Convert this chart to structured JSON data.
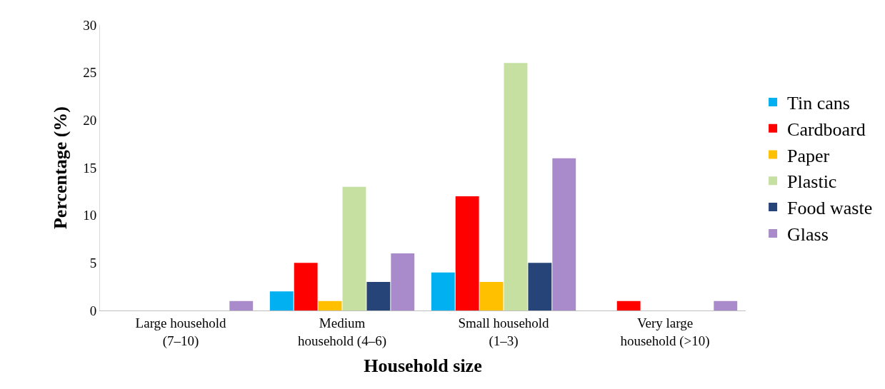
{
  "chart_data": {
    "type": "bar",
    "xlabel": "Household size",
    "ylabel": "Percentage (%)",
    "categories": [
      "Large household (7–10)",
      "Medium household (4–6)",
      "Small household (1–3)",
      "Very large household (>10)"
    ],
    "series": [
      {
        "name": "Tin cans",
        "color": "#00b0f0",
        "values": [
          0,
          2,
          4,
          0
        ]
      },
      {
        "name": "Cardboard",
        "color": "#ff0000",
        "values": [
          0,
          5,
          12,
          1
        ]
      },
      {
        "name": "Paper",
        "color": "#ffc000",
        "values": [
          0,
          1,
          3,
          0
        ]
      },
      {
        "name": "Plastic",
        "color": "#c5e0a0",
        "values": [
          0,
          13,
          26,
          0
        ]
      },
      {
        "name": "Food waste",
        "color": "#264478",
        "values": [
          0,
          3,
          5,
          0
        ]
      },
      {
        "name": "Glass",
        "color": "#a98bcb",
        "values": [
          1,
          6,
          16,
          1
        ]
      }
    ],
    "ylim": [
      0,
      30
    ],
    "yticks": [
      0,
      5,
      10,
      15,
      20,
      25,
      30
    ],
    "legend": "right"
  }
}
